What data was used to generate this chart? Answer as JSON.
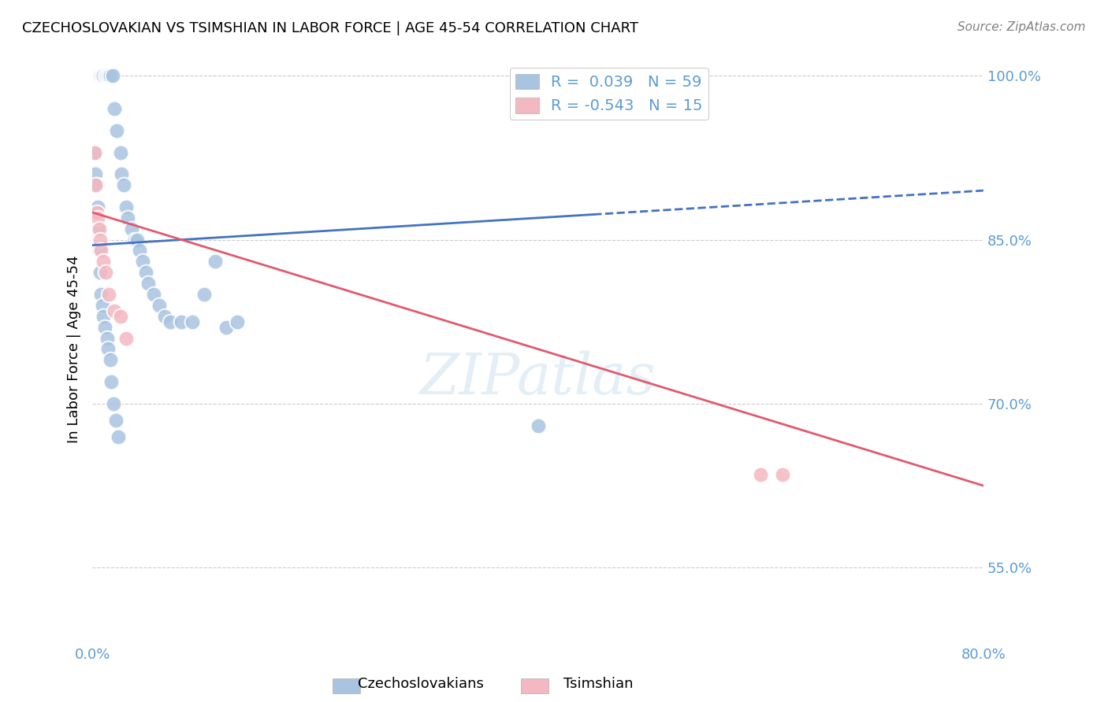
{
  "title": "CZECHOSLOVAKIAN VS TSIMSHIAN IN LABOR FORCE | AGE 45-54 CORRELATION CHART",
  "source": "Source: ZipAtlas.com",
  "xlabel_bottom": "",
  "ylabel": "In Labor Force | Age 45-54",
  "watermark": "ZIPatlas",
  "xmin": 0.0,
  "xmax": 0.8,
  "ymin": 0.48,
  "ymax": 1.02,
  "xticks": [
    0.0,
    0.1,
    0.2,
    0.3,
    0.4,
    0.5,
    0.6,
    0.7,
    0.8
  ],
  "xtick_labels": [
    "0.0%",
    "",
    "",
    "",
    "",
    "",
    "",
    "",
    "80.0%"
  ],
  "ytick_labels_right": [
    "100.0%",
    "85.0%",
    "70.0%",
    "55.0%"
  ],
  "ytick_vals": [
    1.0,
    0.85,
    0.7,
    0.55
  ],
  "legend_r1": "R =  0.039   N = 59",
  "legend_r2": "R = -0.543   N = 15",
  "czech_color": "#a8c4e0",
  "tsimshian_color": "#f4b8c1",
  "trend_czech_color": "#4472c4",
  "trend_tsimshian_color": "#e05a6e",
  "background_color": "#ffffff",
  "grid_color": "#cccccc",
  "label_color": "#5b9bd5",
  "czech_points_x": [
    0.002,
    0.004,
    0.004,
    0.005,
    0.006,
    0.006,
    0.007,
    0.007,
    0.008,
    0.009,
    0.01,
    0.012,
    0.013,
    0.015,
    0.016,
    0.018,
    0.02,
    0.022,
    0.025,
    0.026,
    0.028,
    0.03,
    0.032,
    0.035,
    0.038,
    0.04,
    0.042,
    0.045,
    0.048,
    0.05,
    0.055,
    0.06,
    0.065,
    0.07,
    0.08,
    0.09,
    0.1,
    0.11,
    0.12,
    0.13,
    0.003,
    0.003,
    0.004,
    0.005,
    0.005,
    0.006,
    0.007,
    0.008,
    0.009,
    0.01,
    0.011,
    0.013,
    0.014,
    0.016,
    0.017,
    0.019,
    0.021,
    0.023,
    0.4
  ],
  "czech_points_y": [
    1.0,
    1.0,
    1.0,
    1.0,
    1.0,
    1.0,
    1.0,
    1.0,
    1.0,
    1.0,
    1.0,
    1.0,
    1.0,
    1.0,
    1.0,
    1.0,
    0.97,
    0.95,
    0.93,
    0.91,
    0.9,
    0.88,
    0.87,
    0.86,
    0.85,
    0.85,
    0.84,
    0.83,
    0.82,
    0.81,
    0.8,
    0.79,
    0.78,
    0.775,
    0.775,
    0.775,
    0.8,
    0.83,
    0.77,
    0.775,
    0.93,
    0.91,
    0.9,
    0.88,
    0.86,
    0.84,
    0.82,
    0.8,
    0.79,
    0.78,
    0.77,
    0.76,
    0.75,
    0.74,
    0.72,
    0.7,
    0.685,
    0.67,
    0.68
  ],
  "tsimshian_points_x": [
    0.002,
    0.003,
    0.004,
    0.005,
    0.006,
    0.007,
    0.008,
    0.01,
    0.012,
    0.015,
    0.02,
    0.025,
    0.03,
    0.6,
    0.62
  ],
  "tsimshian_points_y": [
    0.93,
    0.9,
    0.875,
    0.87,
    0.86,
    0.85,
    0.84,
    0.83,
    0.82,
    0.8,
    0.785,
    0.78,
    0.76,
    0.635,
    0.635
  ],
  "czech_trend_x": [
    0.0,
    0.8
  ],
  "czech_trend_y": [
    0.845,
    0.895
  ],
  "tsimshian_trend_x": [
    0.0,
    0.8
  ],
  "tsimshian_trend_y": [
    0.875,
    0.625
  ]
}
